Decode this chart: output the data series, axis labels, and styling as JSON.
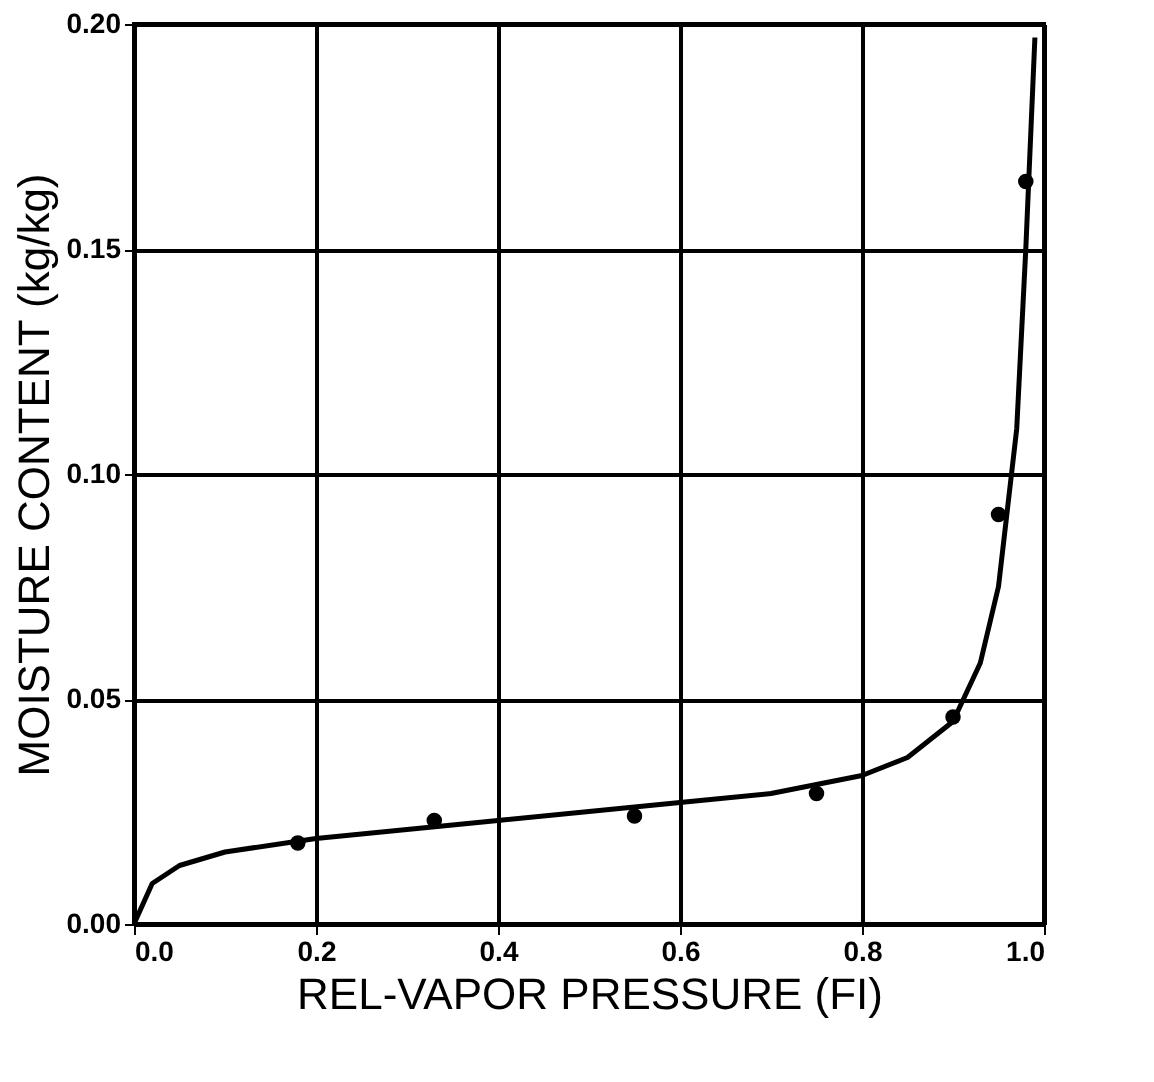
{
  "chart_data": {
    "type": "scatter",
    "xlabel": "REL-VAPOR PRESSURE (FI)",
    "ylabel": "MOISTURE CONTENT (kg/kg)",
    "xlim": [
      0,
      1
    ],
    "ylim": [
      0,
      0.2
    ],
    "xticks": [
      {
        "value": 0,
        "label": "0.0"
      },
      {
        "value": 0.2,
        "label": "0.2"
      },
      {
        "value": 0.4,
        "label": "0.4"
      },
      {
        "value": 0.6,
        "label": "0.6"
      },
      {
        "value": 0.8,
        "label": "0.8"
      },
      {
        "value": 1,
        "label": "1.0"
      }
    ],
    "yticks": [
      {
        "value": 0,
        "label": "0.00"
      },
      {
        "value": 0.05,
        "label": "0.05"
      },
      {
        "value": 0.1,
        "label": "0.10"
      },
      {
        "value": 0.15,
        "label": "0.15"
      },
      {
        "value": 0.2,
        "label": "0.20"
      }
    ],
    "grid": true,
    "marker": "circle",
    "series": [
      {
        "color": "#000000",
        "x": [
          0.18,
          0.33,
          0.55,
          0.75,
          0.9,
          0.95,
          0.98
        ],
        "values": [
          0.018,
          0.023,
          0.024,
          0.029,
          0.046,
          0.091,
          0.165
        ]
      },
      {
        "type": "line",
        "color": "#000000",
        "line_style": "solid",
        "marker": "none",
        "x": [
          0,
          0.02,
          0.05,
          0.1,
          0.2,
          0.3,
          0.4,
          0.5,
          0.6,
          0.7,
          0.8,
          0.85,
          0.9,
          0.93,
          0.95,
          0.97,
          0.98,
          0.99
        ],
        "values": [
          0,
          0.009,
          0.013,
          0.016,
          0.019,
          0.021,
          0.023,
          0.025,
          0.027,
          0.029,
          0.033,
          0.037,
          0.045,
          0.058,
          0.075,
          0.11,
          0.15,
          0.197
        ]
      }
    ]
  }
}
